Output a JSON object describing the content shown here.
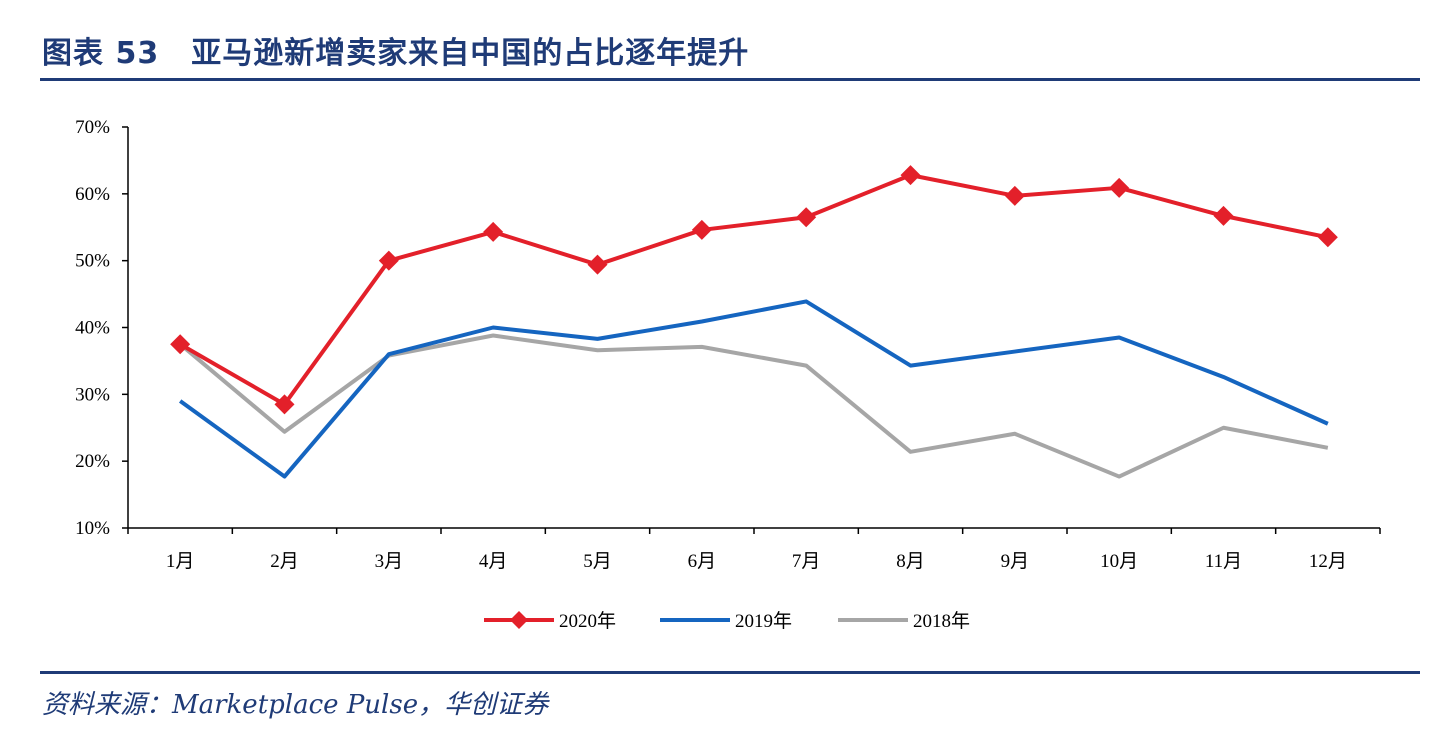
{
  "header": {
    "figure_no": "图表 53",
    "title": "亚马逊新增卖家来自中国的占比逐年提升"
  },
  "source": "资料来源：Marketplace Pulse，华创证券",
  "chart_data": {
    "type": "line",
    "title": "亚马逊新增卖家来自中国的占比逐年提升",
    "xlabel": "",
    "ylabel": "",
    "categories": [
      "1月",
      "2月",
      "3月",
      "4月",
      "5月",
      "6月",
      "7月",
      "8月",
      "9月",
      "10月",
      "11月",
      "12月"
    ],
    "yticks": [
      "10%",
      "20%",
      "30%",
      "40%",
      "50%",
      "60%",
      "70%"
    ],
    "ylim": [
      10,
      70
    ],
    "grid": false,
    "legend_position": "bottom",
    "series": [
      {
        "name": "2020年",
        "color": "#e3202a",
        "marker": "diamond",
        "values": [
          37.5,
          28.5,
          50.0,
          54.3,
          49.4,
          54.6,
          56.5,
          62.8,
          59.7,
          60.9,
          56.7,
          53.5
        ]
      },
      {
        "name": "2019年",
        "color": "#1565c0",
        "marker": "none",
        "values": [
          29.0,
          17.7,
          36.0,
          40.0,
          38.3,
          40.9,
          43.9,
          34.3,
          36.4,
          38.5,
          32.6,
          25.6
        ]
      },
      {
        "name": "2018年",
        "color": "#a6a6a6",
        "marker": "none",
        "values": [
          37.5,
          24.4,
          35.8,
          38.8,
          36.6,
          37.1,
          34.3,
          21.4,
          24.1,
          17.7,
          25.0,
          22.0
        ]
      }
    ]
  }
}
